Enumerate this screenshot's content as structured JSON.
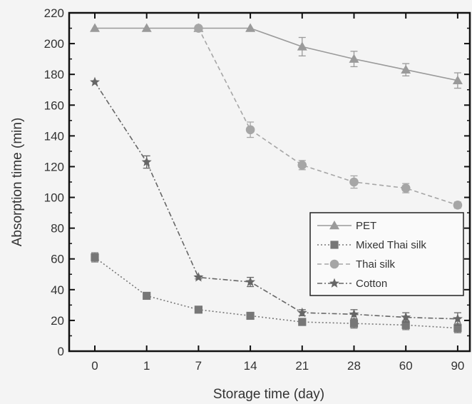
{
  "chart_data": {
    "type": "line",
    "title": "",
    "xlabel": "Storage time (day)",
    "ylabel": "Absorption time (min)",
    "categories": [
      "0",
      "1",
      "7",
      "14",
      "21",
      "28",
      "60",
      "90"
    ],
    "ylim": [
      0,
      220
    ],
    "yticks": [
      0,
      20,
      40,
      60,
      80,
      100,
      120,
      140,
      160,
      180,
      200,
      220
    ],
    "grid": false,
    "legend_position": "bottom-right",
    "series": [
      {
        "name": "PET",
        "marker": "triangle",
        "line": "solid",
        "values": [
          210,
          210,
          210,
          210,
          198,
          190,
          183,
          176
        ],
        "errors": [
          0,
          0,
          0,
          0,
          6,
          5,
          4,
          5
        ]
      },
      {
        "name": "Mixed Thai silk",
        "marker": "square",
        "line": "dotted",
        "values": [
          61,
          36,
          27,
          23,
          19,
          18,
          17,
          15
        ],
        "errors": [
          3,
          1,
          1,
          1,
          2,
          3,
          3,
          3
        ]
      },
      {
        "name": "Thai silk",
        "marker": "circle",
        "line": "dashed",
        "values": [
          null,
          null,
          210,
          144,
          121,
          110,
          106,
          95
        ],
        "errors": [
          0,
          0,
          0,
          5,
          3,
          4,
          3,
          2
        ]
      },
      {
        "name": "Cotton",
        "marker": "star",
        "line": "dashdot",
        "values": [
          175,
          123,
          48,
          45,
          25,
          24,
          22,
          21
        ],
        "errors": [
          0,
          4,
          1,
          3,
          2,
          3,
          3,
          4
        ]
      }
    ]
  }
}
